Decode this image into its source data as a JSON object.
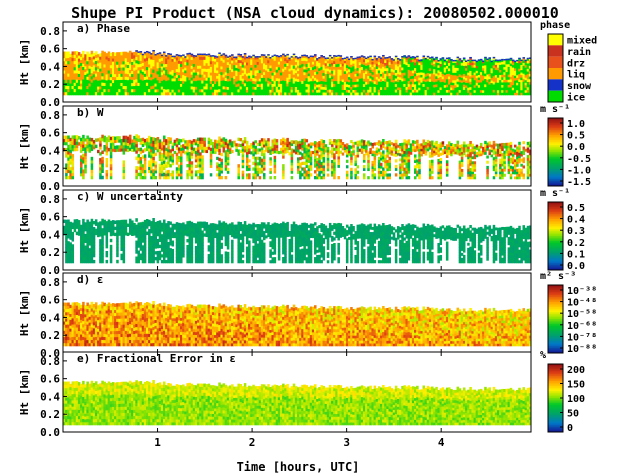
{
  "chart_data": {
    "type": "heatmap",
    "title": "Shupe PI Product (NSA cloud dynamics): 20080502.000010",
    "xlabel": "Time [hours, UTC]",
    "xlim": [
      0,
      4.95
    ],
    "x_ticks": [
      "1",
      "2",
      "3",
      "4"
    ],
    "x_tick_values": [
      1,
      2,
      3,
      4
    ],
    "panels": [
      {
        "label": "a) Phase",
        "ylabel": "Ht [km]",
        "ylim": [
          0,
          0.9
        ],
        "y_ticks": [
          "0.0",
          "0.2",
          "0.4",
          "0.6",
          "0.8"
        ],
        "legend_title": "phase",
        "legend_type": "categorical",
        "legend_entries": [
          {
            "label": "mixed",
            "color": "#ffff00"
          },
          {
            "label": "rain",
            "color": "#c8321e"
          },
          {
            "label": "drz",
            "color": "#e8501c"
          },
          {
            "label": "liq",
            "color": "#ff9a00"
          },
          {
            "label": "snow",
            "color": "#1432c8"
          },
          {
            "label": "ice",
            "color": "#00dc00"
          }
        ],
        "cloud_top_km": 0.55,
        "cloud_base_km": 0.08
      },
      {
        "label": "b) W",
        "ylabel": "Ht [km]",
        "ylim": [
          0,
          0.9
        ],
        "y_ticks": [
          "0.0",
          "0.2",
          "0.4",
          "0.6",
          "0.8"
        ],
        "legend_title": "m s⁻¹",
        "legend_type": "continuous",
        "legend_ticks": [
          "1.0",
          "0.5",
          "0.0",
          "-0.5",
          "-1.0",
          "-1.5"
        ],
        "value_range": [
          -1.5,
          1.0
        ],
        "cloud_top_km": 0.55,
        "cloud_base_km": 0.08
      },
      {
        "label": "c) W uncertainty",
        "ylabel": "Ht [km]",
        "ylim": [
          0,
          0.9
        ],
        "y_ticks": [
          "0.0",
          "0.2",
          "0.4",
          "0.6",
          "0.8"
        ],
        "legend_title": "m s⁻¹",
        "legend_type": "continuous",
        "legend_ticks": [
          "0.5",
          "0.4",
          "0.3",
          "0.2",
          "0.1",
          "0.0"
        ],
        "value_range": [
          0.0,
          0.5
        ],
        "cloud_top_km": 0.55,
        "cloud_base_km": 0.08
      },
      {
        "label": "d) ε",
        "ylabel": "Ht [km]",
        "ylim": [
          0,
          0.9
        ],
        "y_ticks": [
          "0.0",
          "0.2",
          "0.4",
          "0.6",
          "0.8"
        ],
        "legend_title": "m² s⁻³",
        "legend_type": "continuous",
        "legend_ticks": [
          "10⁻³⁸",
          "10⁻⁴⁸",
          "10⁻⁵⁸",
          "10⁻⁶⁸",
          "10⁻⁷⁸",
          "10⁻⁸⁸"
        ],
        "cloud_top_km": 0.55,
        "cloud_base_km": 0.08
      },
      {
        "label": "e) Fractional Error in ε",
        "ylabel": "Ht [km]",
        "ylim": [
          0,
          0.9
        ],
        "y_ticks": [
          "0.0",
          "0.2",
          "0.4",
          "0.6",
          "0.8"
        ],
        "legend_title": "%",
        "legend_type": "continuous",
        "legend_ticks": [
          "200",
          "150",
          "100",
          "50",
          "0"
        ],
        "value_range": [
          0,
          200
        ],
        "cloud_top_km": 0.55,
        "cloud_base_km": 0.08
      }
    ]
  }
}
